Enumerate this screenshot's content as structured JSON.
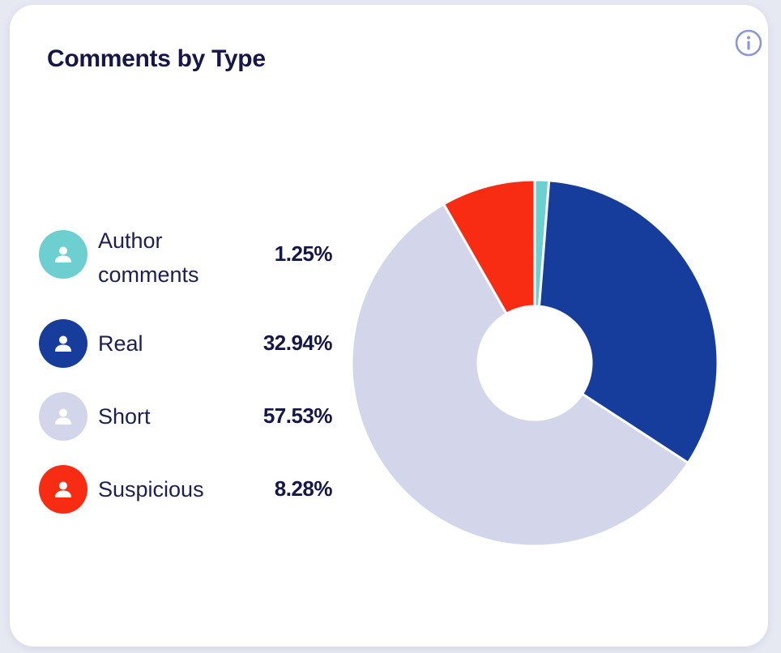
{
  "card": {
    "title": "Comments by Type",
    "info_icon": "info-circle-icon"
  },
  "colors": {
    "author_comments": "#6ecfd0",
    "real": "#163d9c",
    "short": "#d3d6ea",
    "suspicious": "#f72c12",
    "title_text": "#15174a",
    "info_icon": "#8c98d4"
  },
  "legend": [
    {
      "label": "Author comments",
      "value": "1.25%",
      "icon": "user-icon",
      "color": "#6ecfd0"
    },
    {
      "label": "Real",
      "value": "32.94%",
      "icon": "user-icon",
      "color": "#163d9c"
    },
    {
      "label": "Short",
      "value": "57.53%",
      "icon": "user-icon",
      "color": "#d3d6ea"
    },
    {
      "label": "Suspicious",
      "value": "8.28%",
      "icon": "user-icon",
      "color": "#f72c12"
    }
  ],
  "chart_data": {
    "type": "pie",
    "donut": true,
    "title": "Comments by Type",
    "categories": [
      "Author comments",
      "Real",
      "Short",
      "Suspicious"
    ],
    "values": [
      1.25,
      32.94,
      57.53,
      8.28
    ],
    "unit": "%",
    "colors": [
      "#6ecfd0",
      "#163d9c",
      "#d3d6ea",
      "#f72c12"
    ],
    "start_angle_deg": 0,
    "direction": "clockwise",
    "legend": "left"
  }
}
